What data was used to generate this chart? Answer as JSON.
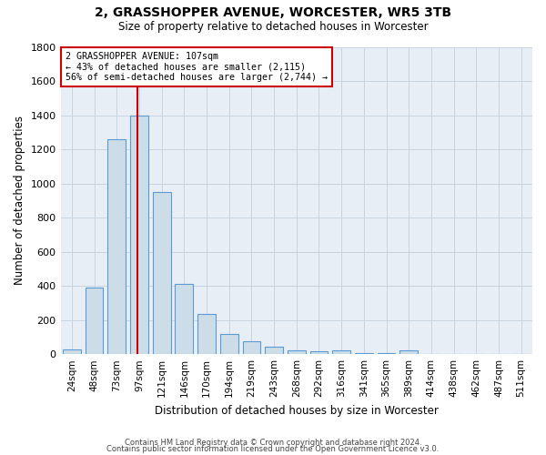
{
  "title": "2, GRASSHOPPER AVENUE, WORCESTER, WR5 3TB",
  "subtitle": "Size of property relative to detached houses in Worcester",
  "xlabel": "Distribution of detached houses by size in Worcester",
  "ylabel": "Number of detached properties",
  "footnote1": "Contains HM Land Registry data © Crown copyright and database right 2024.",
  "footnote2": "Contains public sector information licensed under the Open Government Licence v3.0.",
  "bar_labels": [
    "24sqm",
    "48sqm",
    "73sqm",
    "97sqm",
    "121sqm",
    "146sqm",
    "170sqm",
    "194sqm",
    "219sqm",
    "243sqm",
    "268sqm",
    "292sqm",
    "316sqm",
    "341sqm",
    "365sqm",
    "389sqm",
    "414sqm",
    "438sqm",
    "462sqm",
    "487sqm",
    "511sqm"
  ],
  "bar_values": [
    30,
    390,
    1260,
    1400,
    950,
    410,
    235,
    120,
    75,
    45,
    20,
    15,
    20,
    5,
    5,
    20,
    0,
    0,
    0,
    0,
    0
  ],
  "bar_color": "#ccdde8",
  "bar_edge_color": "#5b9bd5",
  "grid_color": "#c8d4e0",
  "bg_color": "#e8eef5",
  "red_line_color": "#cc0000",
  "annotation_text": "2 GRASSHOPPER AVENUE: 107sqm\n← 43% of detached houses are smaller (2,115)\n56% of semi-detached houses are larger (2,744) →",
  "annotation_box_color": "#cc0000",
  "annotation_bg": "#ffffff",
  "ylim": [
    0,
    1800
  ],
  "yticks": [
    0,
    200,
    400,
    600,
    800,
    1000,
    1200,
    1400,
    1600,
    1800
  ],
  "prop_sqm": 107,
  "bin_start_sqm": [
    24,
    48,
    73,
    97,
    121,
    146,
    170,
    194,
    219,
    243,
    268,
    292,
    316,
    341,
    365,
    389,
    414,
    438,
    462,
    487,
    511
  ]
}
